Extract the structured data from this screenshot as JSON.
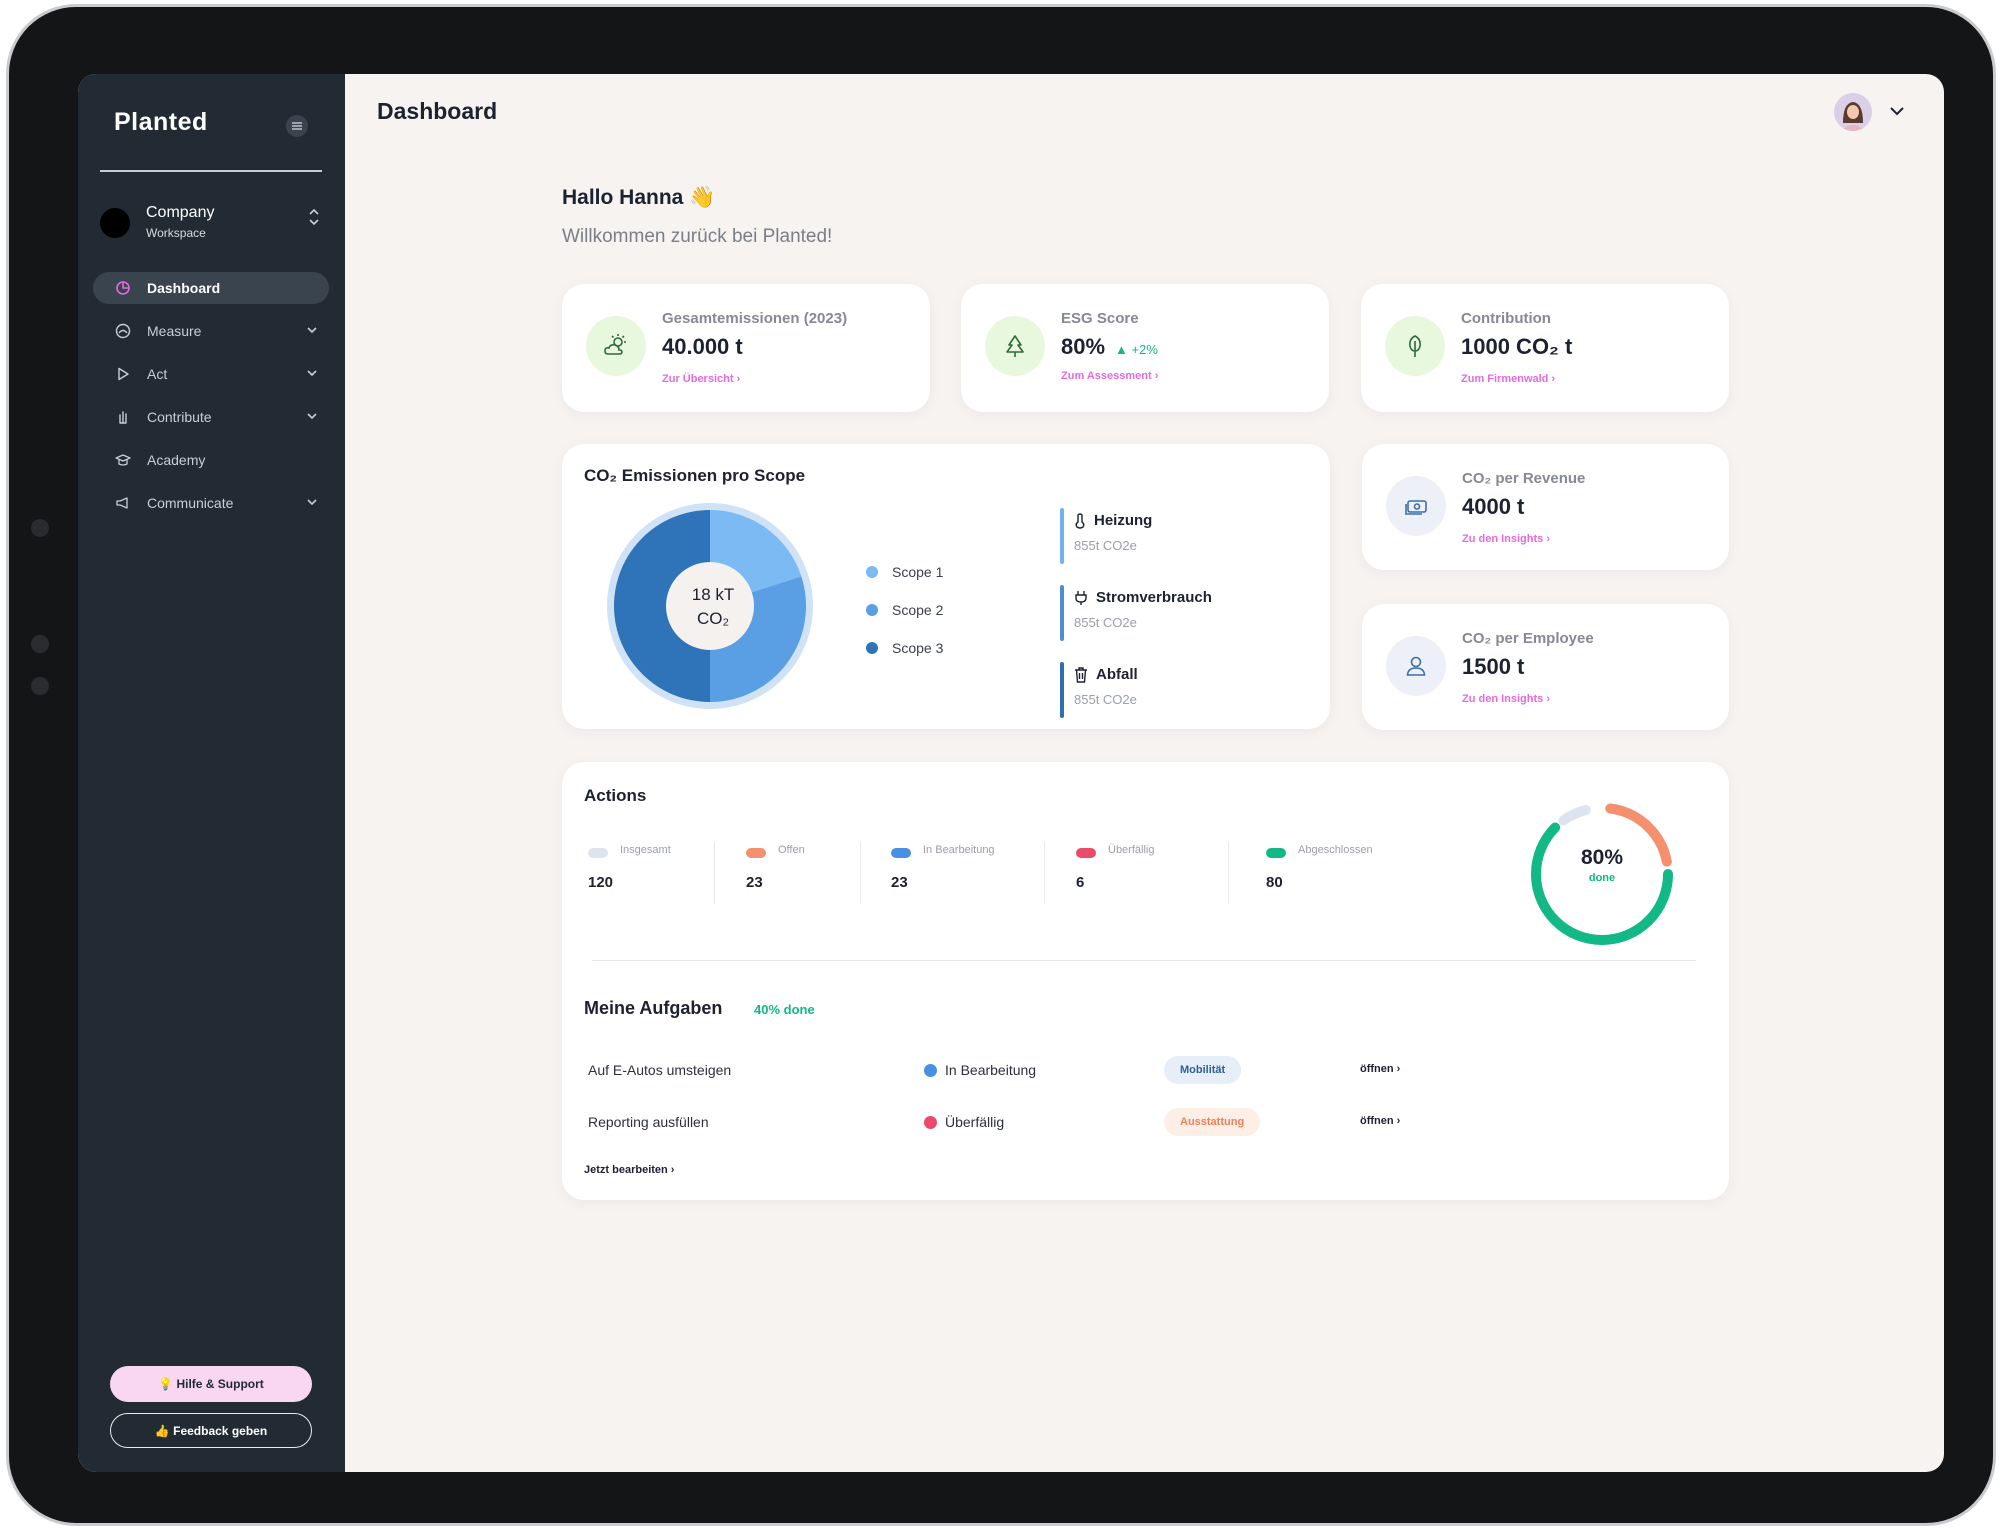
{
  "app": {
    "logo": "Planted",
    "page_title": "Dashboard"
  },
  "sidebar": {
    "company_name": "Company",
    "company_sub": "Workspace",
    "items": [
      {
        "label": "Dashboard",
        "icon": "pie-chart-icon",
        "active": true
      },
      {
        "label": "Measure",
        "icon": "gauge-icon",
        "expandable": true
      },
      {
        "label": "Act",
        "icon": "play-icon",
        "expandable": true
      },
      {
        "label": "Contribute",
        "icon": "hand-icon",
        "expandable": true
      },
      {
        "label": "Academy",
        "icon": "graduation-icon"
      },
      {
        "label": "Communicate",
        "icon": "megaphone-icon",
        "expandable": true
      }
    ],
    "help_label": "💡 Hilfe & Support",
    "feedback_label": "👍 Feedback geben"
  },
  "welcome": {
    "greeting": "Hallo Hanna 👋",
    "subtitle": "Willkommen zurück bei Planted!"
  },
  "kpis": [
    {
      "label": "Gesamtemissionen (2023)",
      "value": "40.000 t",
      "link": "Zur Übersicht ›",
      "icon": "sun-cloud-icon"
    },
    {
      "label": "ESG Score",
      "value": "80%",
      "delta": "▲ +2%",
      "link": "Zum Assessment ›",
      "icon": "tree-icon"
    },
    {
      "label": "Contribution",
      "value": "1000 CO₂ t",
      "link": "Zum Firmenwald ›",
      "icon": "leaf-tree-icon"
    },
    {
      "label": "CO₂ per Revenue",
      "value": "4000 t",
      "link": "Zu den Insights ›",
      "icon": "money-icon"
    },
    {
      "label": "CO₂ per Employee",
      "value": "1500 t",
      "link": "Zu den Insights ›",
      "icon": "user-icon"
    }
  ],
  "scope_card": {
    "title": "CO₂ Emissionen pro Scope",
    "center_value": "18 kT",
    "center_unit": "CO₂",
    "categories": [
      {
        "name": "Heizung",
        "value": "855t CO2e",
        "icon": "thermometer-icon",
        "color": "#6fb3f2"
      },
      {
        "name": "Stromverbrauch",
        "value": "855t CO2e",
        "icon": "plug-icon",
        "color": "#4a8fd6"
      },
      {
        "name": "Abfall",
        "value": "855t CO2e",
        "icon": "trash-icon",
        "color": "#2e6fb0"
      }
    ]
  },
  "chart_data": {
    "type": "pie",
    "title": "CO₂ Emissionen pro Scope",
    "series": [
      {
        "name": "Scope 1",
        "value": 20,
        "color": "#7bbaf3"
      },
      {
        "name": "Scope 2",
        "value": 30,
        "color": "#5a9fe3"
      },
      {
        "name": "Scope 3",
        "value": 50,
        "color": "#2f73b8"
      }
    ]
  },
  "actions": {
    "title": "Actions",
    "stats": [
      {
        "label": "Insgesamt",
        "value": "120",
        "color": "#dde3ef"
      },
      {
        "label": "Offen",
        "value": "23",
        "color": "#f5906f"
      },
      {
        "label": "In Bearbeitung",
        "value": "23",
        "color": "#4a90e2"
      },
      {
        "label": "Überfällig",
        "value": "6",
        "color": "#e94b6a"
      },
      {
        "label": "Abgeschlossen",
        "value": "80",
        "color": "#12b886"
      }
    ],
    "progress": 0.8,
    "progress_label": "80%",
    "progress_sub": "done"
  },
  "tasks": {
    "title": "Meine Aufgaben",
    "done": "40% done",
    "rows": [
      {
        "name": "Auf E-Autos umsteigen",
        "status": "In Bearbeitung",
        "status_color": "#4a90e2",
        "tag": "Mobilität",
        "tag_bg": "#e6eef8",
        "tag_fg": "#2f5f95",
        "action": "öffnen ›"
      },
      {
        "name": "Reporting ausfüllen",
        "status": "Überfällig",
        "status_color": "#e94b6a",
        "tag": "Ausstattung",
        "tag_bg": "#fdeee6",
        "tag_fg": "#f0805a",
        "action": "öffnen ›"
      }
    ],
    "edit_link": "Jetzt bearbeiten ›"
  }
}
